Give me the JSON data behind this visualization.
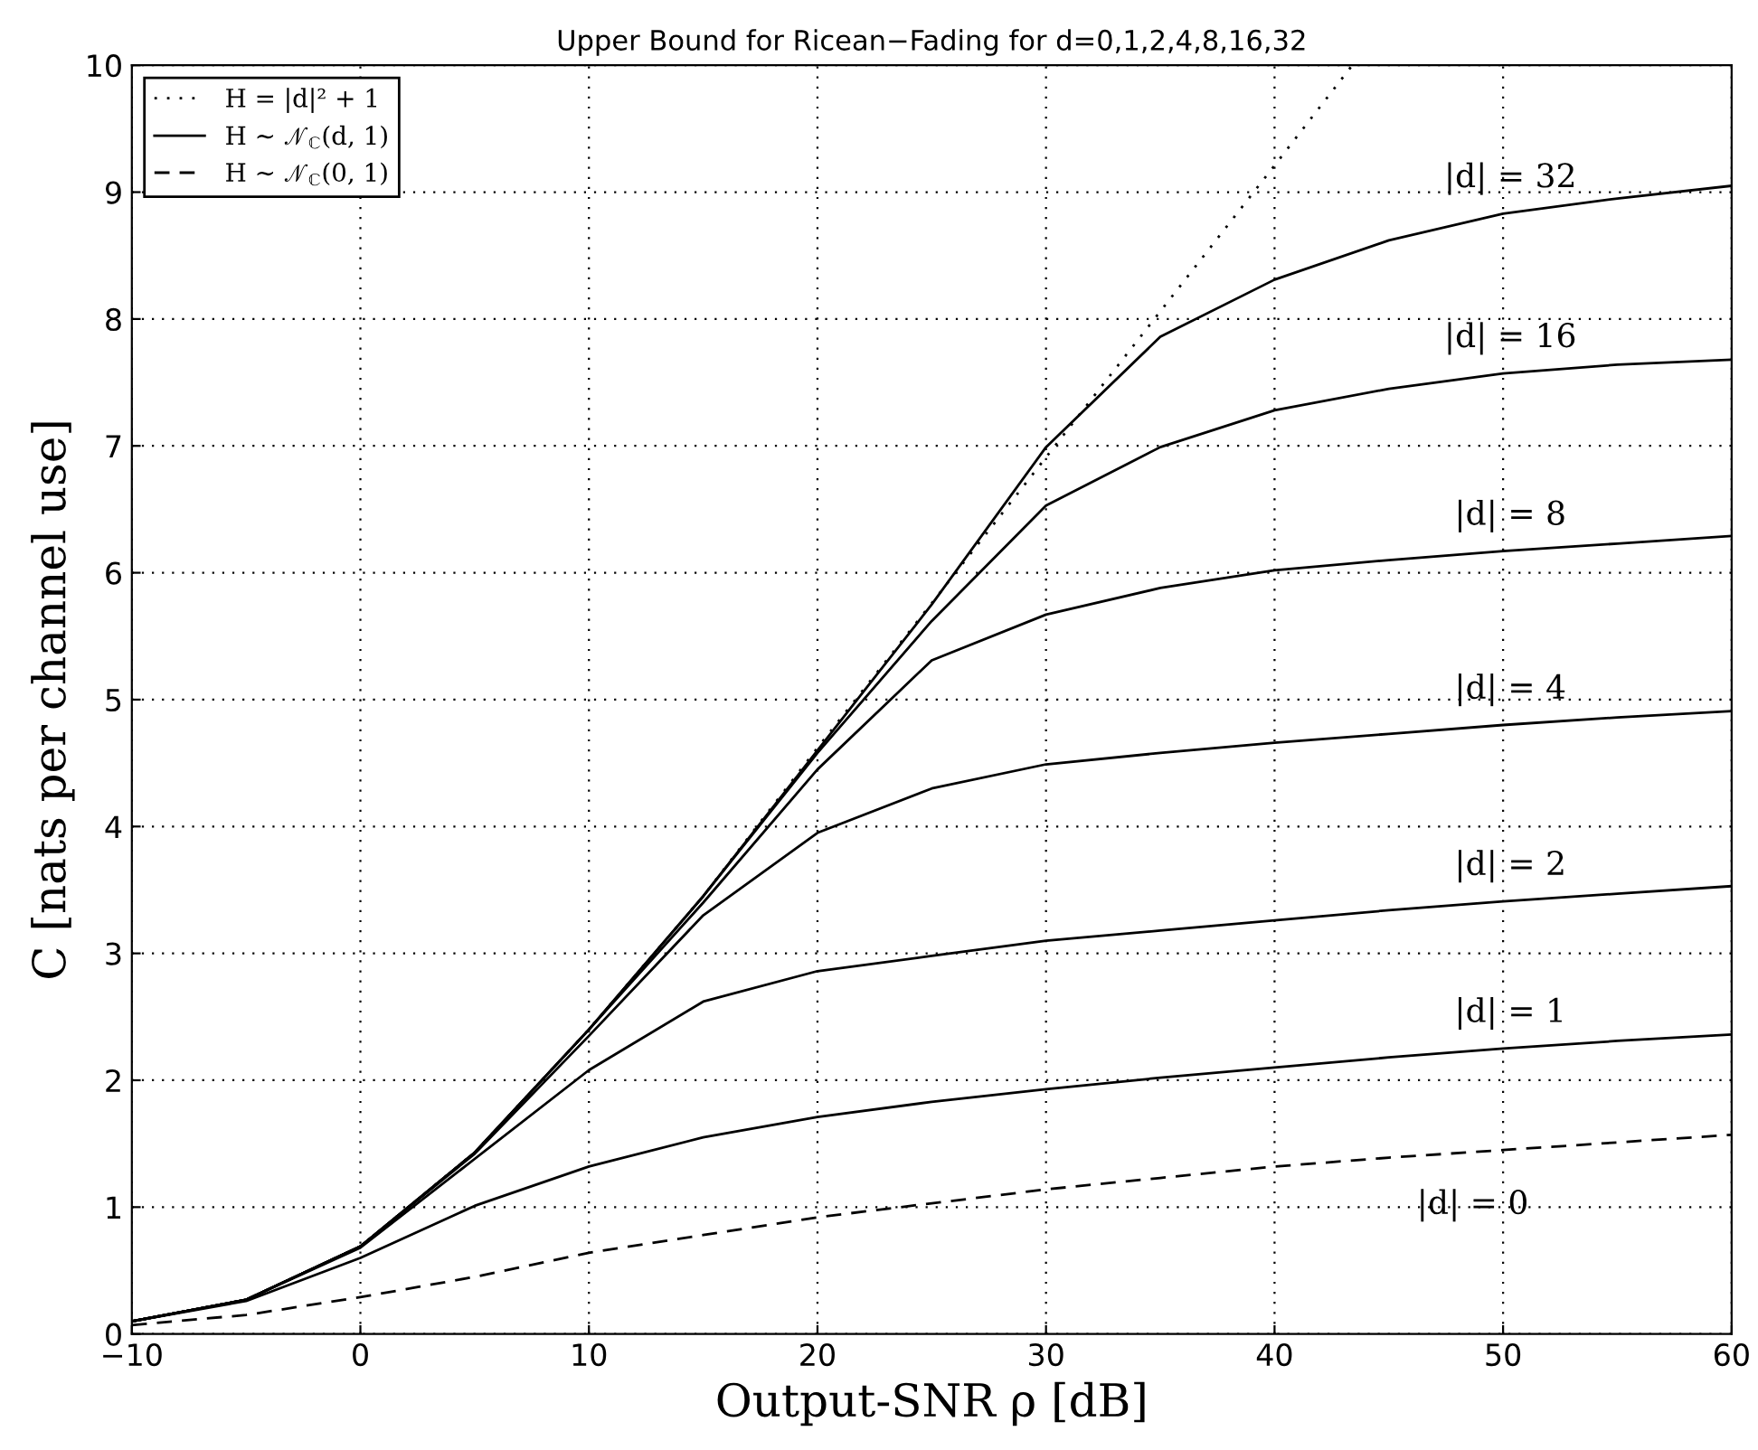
{
  "chart_data": {
    "type": "line",
    "title": "Upper Bound for Ricean−Fading for d=0,1,2,4,8,16,32",
    "xlabel": "Output-SNR ρ [dB]",
    "ylabel": "C [nats per channel use]",
    "xlim": [
      -10,
      60
    ],
    "ylim": [
      0,
      10
    ],
    "xticks": [
      {
        "value": -10,
        "label": "−10"
      },
      0,
      10,
      20,
      30,
      40,
      50,
      60
    ],
    "yticks": [
      0,
      1,
      2,
      3,
      4,
      5,
      6,
      7,
      8,
      9,
      10
    ],
    "grid": true,
    "legend": "top left",
    "marker": "none",
    "x": [
      -10,
      -5,
      0,
      5,
      10,
      15,
      20,
      25,
      30,
      35,
      40,
      45,
      50,
      55,
      60
    ],
    "series": [
      {
        "name": "H = |d|² + 1",
        "color": "#000000",
        "line_style": "dotted",
        "x": [
          -10,
          -5,
          0,
          5,
          10,
          15,
          20,
          25,
          30,
          35,
          40,
          43.4
        ],
        "values": [
          0.1,
          0.27,
          0.69,
          1.43,
          2.4,
          3.45,
          4.62,
          5.76,
          6.91,
          8.06,
          9.21,
          10
        ]
      },
      {
        "name": "H ∼ 𝒩$_{ℂ}$(d, 1)",
        "color": "#000000",
        "line_style": "solid",
        "values": [
          0.1,
          0.26,
          0.6,
          1.01,
          1.32,
          1.55,
          1.71,
          1.83,
          1.93,
          2.02,
          2.1,
          2.18,
          2.25,
          2.31,
          2.36
        ]
      },
      {
        "color": "#000000",
        "line_style": "solid",
        "values": [
          0.1,
          0.27,
          0.68,
          1.38,
          2.08,
          2.62,
          2.86,
          2.98,
          3.1,
          3.18,
          3.26,
          3.34,
          3.41,
          3.47,
          3.53
        ]
      },
      {
        "color": "#000000",
        "line_style": "solid",
        "values": [
          0.1,
          0.27,
          0.69,
          1.42,
          2.35,
          3.3,
          3.95,
          4.3,
          4.49,
          4.58,
          4.66,
          4.73,
          4.8,
          4.86,
          4.91
        ]
      },
      {
        "color": "#000000",
        "line_style": "solid",
        "values": [
          0.1,
          0.27,
          0.69,
          1.43,
          2.4,
          3.4,
          4.45,
          5.31,
          5.67,
          5.88,
          6.02,
          6.1,
          6.17,
          6.23,
          6.29
        ]
      },
      {
        "color": "#000000",
        "line_style": "solid",
        "values": [
          0.1,
          0.27,
          0.69,
          1.43,
          2.4,
          3.45,
          4.58,
          5.62,
          6.53,
          6.99,
          7.28,
          7.45,
          7.57,
          7.64,
          7.68
        ]
      },
      {
        "color": "#000000",
        "line_style": "solid",
        "values": [
          0.1,
          0.27,
          0.69,
          1.43,
          2.4,
          3.45,
          4.6,
          5.75,
          6.99,
          7.86,
          8.31,
          8.62,
          8.83,
          8.95,
          9.05
        ]
      },
      {
        "name": "H ∼ 𝒩$_{ℂ}$(0, 1)",
        "color": "#000000",
        "line_style": "dashed",
        "values": [
          0.07,
          0.15,
          0.29,
          0.45,
          0.64,
          0.78,
          0.92,
          1.03,
          1.14,
          1.23,
          1.32,
          1.39,
          1.45,
          1.51,
          1.57
        ]
      }
    ],
    "annotations": [
      "|d| = 1",
      "|d| = 2",
      "|d| = 4",
      "|d| = 8",
      "|d| = 16",
      "|d| = 32",
      "|d| = 0"
    ]
  }
}
